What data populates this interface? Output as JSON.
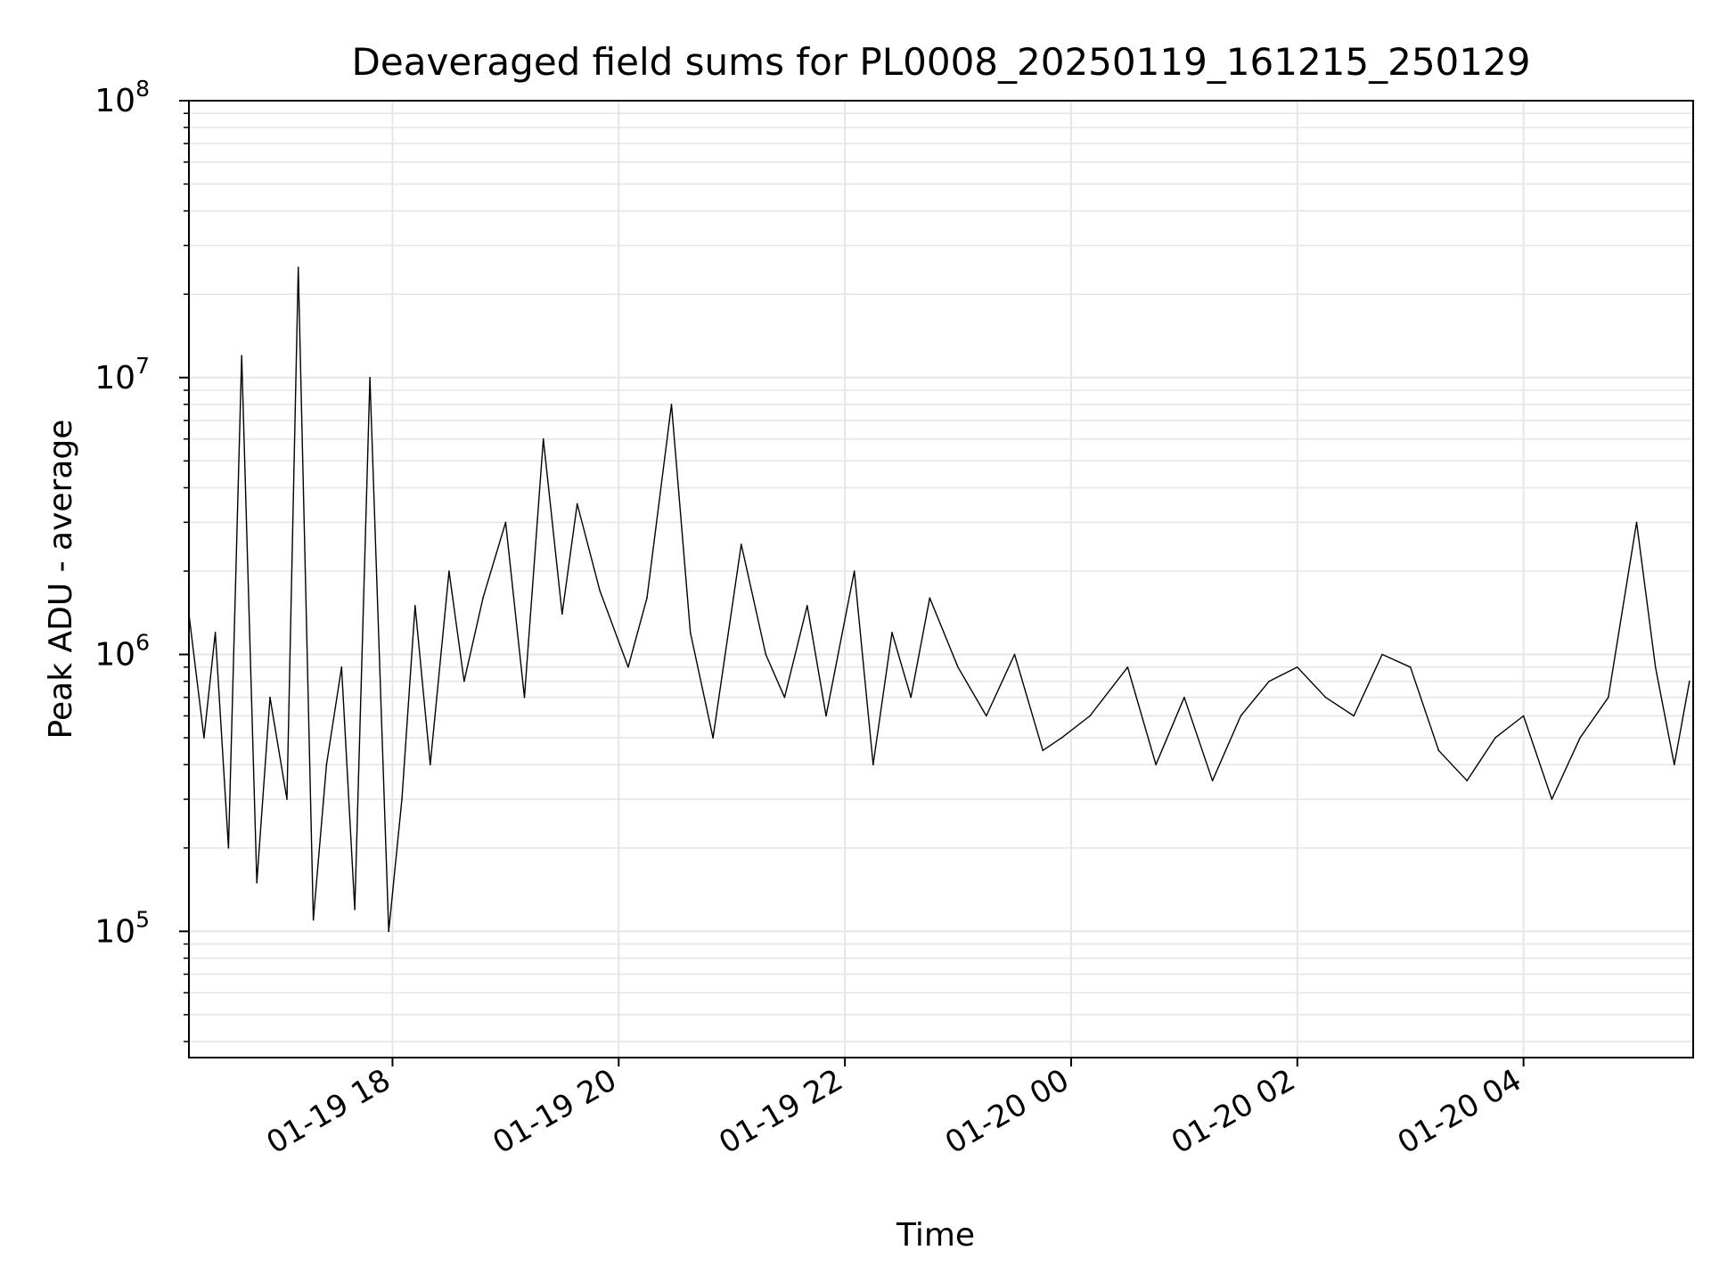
{
  "chart_data": {
    "type": "line",
    "title": "Deaveraged field sums for PL0008_20250119_161215_250129",
    "xlabel": "Time",
    "ylabel": "Peak ADU - average",
    "xscale": "time",
    "yscale": "log",
    "grid": true,
    "line_color": "#000000",
    "grid_color": "#e6e6e6",
    "xlim": [
      "01-19 16:12",
      "01-20 05:30"
    ],
    "ylim": [
      35000,
      100000000
    ],
    "x_ticks": [
      "01-19 18",
      "01-19 20",
      "01-19 22",
      "01-20 00",
      "01-20 02",
      "01-20 04"
    ],
    "y_ticks": [
      {
        "base": "10",
        "exp": "5",
        "value": 100000
      },
      {
        "base": "10",
        "exp": "6",
        "value": 1000000
      },
      {
        "base": "10",
        "exp": "7",
        "value": 10000000
      },
      {
        "base": "10",
        "exp": "8",
        "value": 100000000
      }
    ],
    "series": [
      {
        "x": [
          "01-19 16:12",
          "01-19 16:20",
          "01-19 16:26",
          "01-19 16:33",
          "01-19 16:40",
          "01-19 16:48",
          "01-19 16:55",
          "01-19 17:04",
          "01-19 17:10",
          "01-19 17:18",
          "01-19 17:25",
          "01-19 17:33",
          "01-19 17:40",
          "01-19 17:48",
          "01-19 17:58",
          "01-19 18:05",
          "01-19 18:12",
          "01-19 18:20",
          "01-19 18:30",
          "01-19 18:38",
          "01-19 18:48",
          "01-19 19:00",
          "01-19 19:10",
          "01-19 19:20",
          "01-19 19:30",
          "01-19 19:38",
          "01-19 19:50",
          "01-19 20:05",
          "01-19 20:15",
          "01-19 20:28",
          "01-19 20:38",
          "01-19 20:50",
          "01-19 21:05",
          "01-19 21:18",
          "01-19 21:28",
          "01-19 21:40",
          "01-19 21:50",
          "01-19 22:05",
          "01-19 22:15",
          "01-19 22:25",
          "01-19 22:35",
          "01-19 22:45",
          "01-19 23:00",
          "01-19 23:15",
          "01-19 23:30",
          "01-19 23:45",
          "01-19 23:55",
          "01-20 00:10",
          "01-20 00:30",
          "01-20 00:45",
          "01-20 01:00",
          "01-20 01:15",
          "01-20 01:30",
          "01-20 01:45",
          "01-20 02:00",
          "01-20 02:15",
          "01-20 02:30",
          "01-20 02:45",
          "01-20 03:00",
          "01-20 03:15",
          "01-20 03:30",
          "01-20 03:45",
          "01-20 04:00",
          "01-20 04:15",
          "01-20 04:30",
          "01-20 04:45",
          "01-20 05:00",
          "01-20 05:10",
          "01-20 05:20",
          "01-20 05:28"
        ],
        "y": [
          1400000,
          500000,
          1200000,
          200000,
          12000000,
          150000,
          700000,
          300000,
          25000000,
          110000,
          400000,
          900000,
          120000,
          10000000,
          100000,
          300000,
          1500000,
          400000,
          2000000,
          800000,
          1600000,
          3000000,
          700000,
          6000000,
          1400000,
          3500000,
          1700000,
          900000,
          1600000,
          8000000,
          1200000,
          500000,
          2500000,
          1000000,
          700000,
          1500000,
          600000,
          2000000,
          400000,
          1200000,
          700000,
          1600000,
          900000,
          600000,
          1000000,
          450000,
          500000,
          600000,
          900000,
          400000,
          700000,
          350000,
          600000,
          800000,
          900000,
          700000,
          600000,
          1000000,
          900000,
          450000,
          350000,
          500000,
          600000,
          300000,
          500000,
          700000,
          3000000,
          900000,
          400000,
          800000
        ]
      }
    ]
  }
}
